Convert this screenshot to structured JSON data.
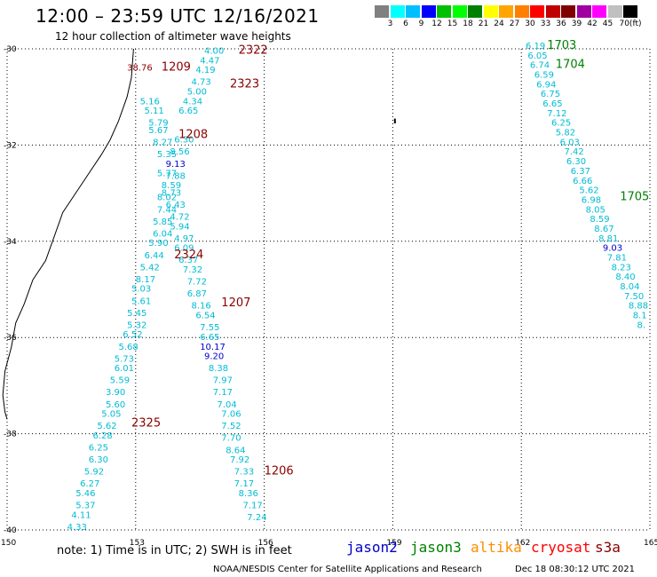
{
  "header": {
    "title": "12:00 – 23:59 UTC 12/16/2021",
    "subtitle": "12 hour collection of altimeter wave heights"
  },
  "color_scale": {
    "unit": "(ft)",
    "colors": [
      "#808080",
      "#00ffff",
      "#00bfff",
      "#0000ff",
      "#00c000",
      "#00ff00",
      "#008000",
      "#ffff00",
      "#ffa500",
      "#ff8000",
      "#ff0000",
      "#c00000",
      "#800000",
      "#a000a0",
      "#ff00ff",
      "#c0c0c0",
      "#000000"
    ],
    "labels": [
      "3",
      "6",
      "9",
      "12",
      "15",
      "18",
      "21",
      "24",
      "27",
      "30",
      "33",
      "36",
      "39",
      "42",
      "45",
      "70"
    ]
  },
  "map": {
    "lat_labels": [
      "-30",
      "-32",
      "-34",
      "-36",
      "-38",
      "-40"
    ],
    "lon_labels": [
      "150",
      "153",
      "156",
      "159",
      "162",
      "165"
    ],
    "lat_values": [
      -30,
      -32,
      -34,
      -36,
      -38,
      -40
    ],
    "lon_values": [
      150,
      153,
      156,
      159,
      162,
      165
    ]
  },
  "pass_labels": [
    {
      "text": "2322",
      "color": "#8b0000",
      "lon": 155.4,
      "lat": -30.1
    },
    {
      "text": "1209",
      "color": "#8b0000",
      "lon": 153.6,
      "lat": -30.45
    },
    {
      "text": "2323",
      "color": "#8b0000",
      "lon": 155.2,
      "lat": -30.8
    },
    {
      "text": "1208",
      "color": "#8b0000",
      "lon": 154.0,
      "lat": -31.85
    },
    {
      "text": "2324",
      "color": "#8b0000",
      "lon": 153.9,
      "lat": -34.35
    },
    {
      "text": "1207",
      "color": "#8b0000",
      "lon": 155.0,
      "lat": -35.35
    },
    {
      "text": "2325",
      "color": "#8b0000",
      "lon": 152.9,
      "lat": -37.85
    },
    {
      "text": "1206",
      "color": "#8b0000",
      "lon": 156.0,
      "lat": -38.85
    },
    {
      "text": "1703",
      "color": "#008000",
      "lon": 162.6,
      "lat": -30.0
    },
    {
      "text": "1704",
      "color": "#008000",
      "lon": 162.8,
      "lat": -30.4
    },
    {
      "text": "1705",
      "color": "#008000",
      "lon": 164.3,
      "lat": -33.15
    }
  ],
  "wave_heights": [
    {
      "v": "38.76",
      "color": "#8b0000",
      "lon": 152.8,
      "lat": -30.45
    },
    {
      "v": "4.00",
      "color": "#00bcd4",
      "lon": 154.6,
      "lat": -30.1
    },
    {
      "v": "4.47",
      "color": "#00bcd4",
      "lon": 154.5,
      "lat": -30.3
    },
    {
      "v": "4.19",
      "color": "#00bcd4",
      "lon": 154.4,
      "lat": -30.5
    },
    {
      "v": "4.73",
      "color": "#00bcd4",
      "lon": 154.3,
      "lat": -30.75
    },
    {
      "v": "5.00",
      "color": "#00bcd4",
      "lon": 154.2,
      "lat": -30.95
    },
    {
      "v": "4.34",
      "color": "#00bcd4",
      "lon": 154.1,
      "lat": -31.15
    },
    {
      "v": "6.65",
      "color": "#00bcd4",
      "lon": 154.0,
      "lat": -31.35
    },
    {
      "v": "5.16",
      "color": "#00bcd4",
      "lon": 153.1,
      "lat": -31.15
    },
    {
      "v": "5.11",
      "color": "#00bcd4",
      "lon": 153.2,
      "lat": -31.35
    },
    {
      "v": "5.79",
      "color": "#00bcd4",
      "lon": 153.3,
      "lat": -31.6
    },
    {
      "v": "5.67",
      "color": "#00bcd4",
      "lon": 153.3,
      "lat": -31.75
    },
    {
      "v": "6.30",
      "color": "#00bcd4",
      "lon": 153.9,
      "lat": -31.95
    },
    {
      "v": "8.27",
      "color": "#00bcd4",
      "lon": 153.4,
      "lat": -32.0
    },
    {
      "v": "8.56",
      "color": "#00bcd4",
      "lon": 153.8,
      "lat": -32.2
    },
    {
      "v": "5.35",
      "color": "#00bcd4",
      "lon": 153.5,
      "lat": -32.25
    },
    {
      "v": "9.13",
      "color": "#0000cd",
      "lon": 153.7,
      "lat": -32.45
    },
    {
      "v": "5.77",
      "color": "#00bcd4",
      "lon": 153.5,
      "lat": -32.65
    },
    {
      "v": "7.88",
      "color": "#00bcd4",
      "lon": 153.7,
      "lat": -32.7
    },
    {
      "v": "8.59",
      "color": "#00bcd4",
      "lon": 153.6,
      "lat": -32.9
    },
    {
      "v": "8.73",
      "color": "#00bcd4",
      "lon": 153.6,
      "lat": -33.05
    },
    {
      "v": "8.02",
      "color": "#00bcd4",
      "lon": 153.5,
      "lat": -33.15
    },
    {
      "v": "6.43",
      "color": "#00bcd4",
      "lon": 153.7,
      "lat": -33.3
    },
    {
      "v": "7.44",
      "color": "#00bcd4",
      "lon": 153.5,
      "lat": -33.4
    },
    {
      "v": "4.72",
      "color": "#00bcd4",
      "lon": 153.8,
      "lat": -33.55
    },
    {
      "v": "5.85",
      "color": "#00bcd4",
      "lon": 153.4,
      "lat": -33.65
    },
    {
      "v": "5.94",
      "color": "#00bcd4",
      "lon": 153.8,
      "lat": -33.75
    },
    {
      "v": "6.04",
      "color": "#00bcd4",
      "lon": 153.4,
      "lat": -33.9
    },
    {
      "v": "4.97",
      "color": "#00bcd4",
      "lon": 153.9,
      "lat": -34.0
    },
    {
      "v": "5.90",
      "color": "#00bcd4",
      "lon": 153.3,
      "lat": -34.1
    },
    {
      "v": "6.09",
      "color": "#00bcd4",
      "lon": 153.9,
      "lat": -34.2
    },
    {
      "v": "6.44",
      "color": "#00bcd4",
      "lon": 153.2,
      "lat": -34.35
    },
    {
      "v": "6.37",
      "color": "#00bcd4",
      "lon": 154.0,
      "lat": -34.45
    },
    {
      "v": "5.42",
      "color": "#00bcd4",
      "lon": 153.1,
      "lat": -34.6
    },
    {
      "v": "7.32",
      "color": "#00bcd4",
      "lon": 154.1,
      "lat": -34.65
    },
    {
      "v": "8.17",
      "color": "#00bcd4",
      "lon": 153.0,
      "lat": -34.85
    },
    {
      "v": "7.72",
      "color": "#00bcd4",
      "lon": 154.2,
      "lat": -34.9
    },
    {
      "v": "5.03",
      "color": "#00bcd4",
      "lon": 152.9,
      "lat": -35.05
    },
    {
      "v": "6.87",
      "color": "#00bcd4",
      "lon": 154.2,
      "lat": -35.15
    },
    {
      "v": "5.61",
      "color": "#00bcd4",
      "lon": 152.9,
      "lat": -35.3
    },
    {
      "v": "8.16",
      "color": "#00bcd4",
      "lon": 154.3,
      "lat": -35.4
    },
    {
      "v": "5.45",
      "color": "#00bcd4",
      "lon": 152.8,
      "lat": -35.55
    },
    {
      "v": "6.54",
      "color": "#00bcd4",
      "lon": 154.4,
      "lat": -35.6
    },
    {
      "v": "5.32",
      "color": "#00bcd4",
      "lon": 152.8,
      "lat": -35.8
    },
    {
      "v": "7.55",
      "color": "#00bcd4",
      "lon": 154.5,
      "lat": -35.85
    },
    {
      "v": "6.52",
      "color": "#00bcd4",
      "lon": 152.7,
      "lat": -36.0
    },
    {
      "v": "6.65",
      "color": "#00bcd4",
      "lon": 154.5,
      "lat": -36.05
    },
    {
      "v": "5.68",
      "color": "#00bcd4",
      "lon": 152.6,
      "lat": -36.25
    },
    {
      "v": "10.17",
      "color": "#0000cd",
      "lon": 154.5,
      "lat": -36.25
    },
    {
      "v": "5.73",
      "color": "#00bcd4",
      "lon": 152.5,
      "lat": -36.5
    },
    {
      "v": "9.20",
      "color": "#0000cd",
      "lon": 154.6,
      "lat": -36.45
    },
    {
      "v": "6.01",
      "color": "#00bcd4",
      "lon": 152.5,
      "lat": -36.7
    },
    {
      "v": "8.38",
      "color": "#00bcd4",
      "lon": 154.7,
      "lat": -36.7
    },
    {
      "v": "5.59",
      "color": "#00bcd4",
      "lon": 152.4,
      "lat": -36.95
    },
    {
      "v": "7.97",
      "color": "#00bcd4",
      "lon": 154.8,
      "lat": -36.95
    },
    {
      "v": "3.90",
      "color": "#00bcd4",
      "lon": 152.3,
      "lat": -37.2
    },
    {
      "v": "7.17",
      "color": "#00bcd4",
      "lon": 154.8,
      "lat": -37.2
    },
    {
      "v": "5.60",
      "color": "#00bcd4",
      "lon": 152.3,
      "lat": -37.45
    },
    {
      "v": "7.04",
      "color": "#00bcd4",
      "lon": 154.9,
      "lat": -37.45
    },
    {
      "v": "5.05",
      "color": "#00bcd4",
      "lon": 152.2,
      "lat": -37.65
    },
    {
      "v": "7.06",
      "color": "#00bcd4",
      "lon": 155.0,
      "lat": -37.65
    },
    {
      "v": "5.62",
      "color": "#00bcd4",
      "lon": 152.1,
      "lat": -37.9
    },
    {
      "v": "7.52",
      "color": "#00bcd4",
      "lon": 155.0,
      "lat": -37.9
    },
    {
      "v": "6.28",
      "color": "#00bcd4",
      "lon": 152.0,
      "lat": -38.1
    },
    {
      "v": "7.70",
      "color": "#00bcd4",
      "lon": 155.0,
      "lat": -38.15
    },
    {
      "v": "6.25",
      "color": "#00bcd4",
      "lon": 151.9,
      "lat": -38.35
    },
    {
      "v": "8.64",
      "color": "#00bcd4",
      "lon": 155.1,
      "lat": -38.4
    },
    {
      "v": "6.30",
      "color": "#00bcd4",
      "lon": 151.9,
      "lat": -38.6
    },
    {
      "v": "7.92",
      "color": "#00bcd4",
      "lon": 155.2,
      "lat": -38.6
    },
    {
      "v": "5.92",
      "color": "#00bcd4",
      "lon": 151.8,
      "lat": -38.85
    },
    {
      "v": "7.33",
      "color": "#00bcd4",
      "lon": 155.3,
      "lat": -38.85
    },
    {
      "v": "6.27",
      "color": "#00bcd4",
      "lon": 151.7,
      "lat": -39.1
    },
    {
      "v": "7.17",
      "color": "#00bcd4",
      "lon": 155.3,
      "lat": -39.1
    },
    {
      "v": "5.46",
      "color": "#00bcd4",
      "lon": 151.6,
      "lat": -39.3
    },
    {
      "v": "8.36",
      "color": "#00bcd4",
      "lon": 155.4,
      "lat": -39.3
    },
    {
      "v": "5.37",
      "color": "#00bcd4",
      "lon": 151.6,
      "lat": -39.55
    },
    {
      "v": "7.17",
      "color": "#00bcd4",
      "lon": 155.5,
      "lat": -39.55
    },
    {
      "v": "4.11",
      "color": "#00bcd4",
      "lon": 151.5,
      "lat": -39.75
    },
    {
      "v": "7.24",
      "color": "#00bcd4",
      "lon": 155.6,
      "lat": -39.8
    },
    {
      "v": "4.33",
      "color": "#00bcd4",
      "lon": 151.4,
      "lat": -40.0
    },
    {
      "v": "6.19",
      "color": "#00bcd4",
      "lon": 162.1,
      "lat": -30.0
    },
    {
      "v": "6.05",
      "color": "#00bcd4",
      "lon": 162.15,
      "lat": -30.2
    },
    {
      "v": "6.74",
      "color": "#00bcd4",
      "lon": 162.2,
      "lat": -30.4
    },
    {
      "v": "6.59",
      "color": "#00bcd4",
      "lon": 162.3,
      "lat": -30.6
    },
    {
      "v": "6.94",
      "color": "#00bcd4",
      "lon": 162.35,
      "lat": -30.8
    },
    {
      "v": "6.75",
      "color": "#00bcd4",
      "lon": 162.45,
      "lat": -31.0
    },
    {
      "v": "6.65",
      "color": "#00bcd4",
      "lon": 162.5,
      "lat": -31.2
    },
    {
      "v": "7.12",
      "color": "#00bcd4",
      "lon": 162.6,
      "lat": -31.4
    },
    {
      "v": "6.25",
      "color": "#00bcd4",
      "lon": 162.7,
      "lat": -31.6
    },
    {
      "v": "5.82",
      "color": "#00bcd4",
      "lon": 162.8,
      "lat": -31.8
    },
    {
      "v": "6.03",
      "color": "#00bcd4",
      "lon": 162.9,
      "lat": -32.0
    },
    {
      "v": "7.42",
      "color": "#00bcd4",
      "lon": 163.0,
      "lat": -32.2
    },
    {
      "v": "6.30",
      "color": "#00bcd4",
      "lon": 163.05,
      "lat": -32.4
    },
    {
      "v": "6.37",
      "color": "#00bcd4",
      "lon": 163.15,
      "lat": -32.6
    },
    {
      "v": "6.66",
      "color": "#00bcd4",
      "lon": 163.2,
      "lat": -32.8
    },
    {
      "v": "5.62",
      "color": "#00bcd4",
      "lon": 163.35,
      "lat": -33.0
    },
    {
      "v": "6.98",
      "color": "#00bcd4",
      "lon": 163.4,
      "lat": -33.2
    },
    {
      "v": "8.05",
      "color": "#00bcd4",
      "lon": 163.5,
      "lat": -33.4
    },
    {
      "v": "8.59",
      "color": "#00bcd4",
      "lon": 163.6,
      "lat": -33.6
    },
    {
      "v": "8.67",
      "color": "#00bcd4",
      "lon": 163.7,
      "lat": -33.8
    },
    {
      "v": "8.81",
      "color": "#00bcd4",
      "lon": 163.8,
      "lat": -34.0
    },
    {
      "v": "9.03",
      "color": "#0000cd",
      "lon": 163.9,
      "lat": -34.2
    },
    {
      "v": "7.81",
      "color": "#00bcd4",
      "lon": 164.0,
      "lat": -34.4
    },
    {
      "v": "8.23",
      "color": "#00bcd4",
      "lon": 164.1,
      "lat": -34.6
    },
    {
      "v": "8.40",
      "color": "#00bcd4",
      "lon": 164.2,
      "lat": -34.8
    },
    {
      "v": "8.04",
      "color": "#00bcd4",
      "lon": 164.3,
      "lat": -35.0
    },
    {
      "v": "7.50",
      "color": "#00bcd4",
      "lon": 164.4,
      "lat": -35.2
    },
    {
      "v": "8.88",
      "color": "#00bcd4",
      "lon": 164.5,
      "lat": -35.4
    },
    {
      "v": "8.1",
      "color": "#00bcd4",
      "lon": 164.6,
      "lat": -35.6
    },
    {
      "v": "8.",
      "color": "#00bcd4",
      "lon": 164.7,
      "lat": -35.8
    }
  ],
  "footer": {
    "note": "note:  1) Time is in UTC; 2) SWH is in feet",
    "satellites": [
      {
        "name": "jason2",
        "color": "#0000cd"
      },
      {
        "name": "jason3",
        "color": "#008000"
      },
      {
        "name": "altika",
        "color": "#ff8c00"
      },
      {
        "name": "cryosat",
        "color": "#ff0000"
      },
      {
        "name": "s3a",
        "color": "#8b0000"
      }
    ],
    "credit": "NOAA/NESDIS Center for Satellite Applications and Research",
    "timestamp": "Dec 18 08:30:12 UTC 2021"
  }
}
